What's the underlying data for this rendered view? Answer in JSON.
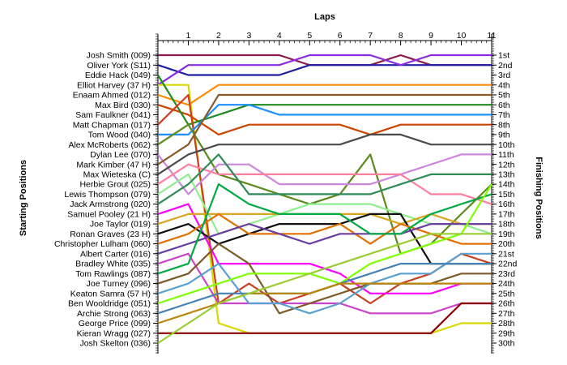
{
  "chart_data": {
    "type": "line",
    "title": "",
    "top_axis_label": "Laps",
    "left_axis_label": "Starting Positions",
    "right_axis_label": "Finishing Positions",
    "x": [
      0,
      1,
      2,
      3,
      4,
      5,
      6,
      7,
      8,
      9,
      10,
      11
    ],
    "x_tick_labels": [
      "1",
      "2",
      "3",
      "4",
      "5",
      "6",
      "7",
      "8",
      "9",
      "10",
      "11"
    ],
    "starting_labels": [
      "Josh Smith (009)",
      "Oliver York (S11)",
      "Eddie Hack (049)",
      "Elliot Harvey (37 H)",
      "Enaam Ahmed (012)",
      "Max Bird (030)",
      "Sam Faulkner (041)",
      "Matt Chapman (017)",
      "Tom Wood (040)",
      "Alex McRoberts (062)",
      "Dylan Lee (070)",
      "Mark Kimber (47 H)",
      "Max Wieteska (C)",
      "Herbie Grout (025)",
      "Lewis Thompson (079)",
      "Jack Armstrong (020)",
      "Samuel Pooley (21 H)",
      "Joe Taylor (019)",
      "Ronan Graves (23 H)",
      "Christopher Lulham (060)",
      "Albert Carter (016)",
      "Bradley White (035)",
      "Tom Rawlings (087)",
      "Joe Turney (096)",
      "Keaton Samra (57 H)",
      "Ben Wooldridge (051)",
      "Archie Strong (063)",
      "George Price (099)",
      "Kieran Wragg (027)",
      "Josh Skelton (036)"
    ],
    "finishing_labels": [
      "1st",
      "2nd",
      "3rd",
      "4th",
      "5th",
      "6th",
      "7th",
      "8th",
      "9th",
      "10th",
      "11th",
      "12th",
      "13th",
      "14th",
      "15th",
      "16th",
      "17th",
      "18th",
      "19th",
      "20th",
      "21st",
      "22nd",
      "23rd",
      "24th",
      "25th",
      "26th",
      "27th",
      "28th",
      "29th",
      "30th"
    ],
    "y_range": [
      1,
      30
    ],
    "y_inverted": true,
    "series": [
      {
        "color": "#8b1a4a",
        "values": [
          1,
          1,
          1,
          1,
          1,
          2,
          2,
          2,
          1,
          2,
          2,
          2
        ]
      },
      {
        "color": "#1e1ea0",
        "values": [
          2,
          3,
          3,
          3,
          3,
          2,
          2,
          2,
          2,
          2,
          2,
          2
        ]
      },
      {
        "color": "#8a2be2",
        "values": [
          4,
          2,
          2,
          2,
          2,
          1,
          1,
          1,
          2,
          1,
          1,
          1
        ]
      },
      {
        "color": "#d8d800",
        "values": [
          4,
          4,
          28,
          29,
          29,
          29,
          29,
          29,
          29,
          29,
          28,
          28
        ]
      },
      {
        "color": "#ff8c00",
        "values": [
          5,
          6,
          4,
          4,
          4,
          4,
          4,
          4,
          4,
          4,
          4,
          4
        ]
      },
      {
        "color": "#cc4400",
        "values": [
          6,
          7,
          9,
          8,
          8,
          8,
          8,
          9,
          8,
          8,
          8,
          8
        ]
      },
      {
        "color": "#228b22",
        "values": [
          3,
          8,
          7,
          6,
          6,
          6,
          6,
          6,
          6,
          6,
          6,
          6
        ]
      },
      {
        "color": "#c84020",
        "values": [
          8,
          5,
          26,
          24,
          26,
          25,
          24,
          26,
          24,
          23,
          21,
          22
        ]
      },
      {
        "color": "#1e90ff",
        "values": [
          9,
          9,
          6,
          6,
          7,
          7,
          7,
          7,
          7,
          7,
          7,
          7
        ]
      },
      {
        "color": "#5c8a1e",
        "values": [
          10,
          8,
          13,
          14,
          15,
          16,
          15,
          11,
          21,
          20,
          17,
          14
        ]
      },
      {
        "color": "#cc88dd",
        "values": [
          11,
          15,
          12,
          12,
          14,
          14,
          14,
          14,
          13,
          12,
          11,
          11
        ]
      },
      {
        "color": "#8b5a2b",
        "values": [
          12,
          10,
          5,
          5,
          5,
          5,
          5,
          5,
          5,
          5,
          5,
          5
        ]
      },
      {
        "color": "#4a4a4a",
        "values": [
          13,
          11,
          10,
          10,
          10,
          10,
          10,
          9,
          9,
          10,
          10,
          10
        ]
      },
      {
        "color": "#ff7fa0",
        "values": [
          14,
          12,
          13,
          13,
          13,
          13,
          13,
          13,
          13,
          15,
          15,
          16
        ]
      },
      {
        "color": "#90ee90",
        "values": [
          15,
          13,
          19,
          18,
          17,
          16,
          16,
          16,
          17,
          18,
          18,
          19
        ]
      },
      {
        "color": "#2e8b57",
        "values": [
          16,
          14,
          11,
          15,
          15,
          15,
          15,
          15,
          14,
          13,
          13,
          13
        ]
      },
      {
        "color": "#ff00ff",
        "values": [
          17,
          16,
          22,
          22,
          22,
          22,
          23,
          25,
          25,
          25,
          24,
          24
        ]
      },
      {
        "color": "#daa520",
        "values": [
          18,
          17,
          17,
          17,
          17,
          17,
          17,
          17,
          18,
          17,
          18,
          18
        ]
      },
      {
        "color": "#111111",
        "values": [
          19,
          18,
          20,
          19,
          18,
          18,
          18,
          17,
          17,
          22,
          22,
          22
        ]
      },
      {
        "color": "#e07000",
        "values": [
          20,
          19,
          17,
          19,
          19,
          19,
          18,
          20,
          18,
          19,
          20,
          20
        ]
      },
      {
        "color": "#6b3fa0",
        "values": [
          21,
          20,
          19,
          18,
          19,
          20,
          19,
          19,
          19,
          18,
          18,
          18
        ]
      },
      {
        "color": "#cc44cc",
        "values": [
          22,
          21,
          26,
          26,
          26,
          26,
          26,
          27,
          27,
          27,
          26,
          26
        ]
      },
      {
        "color": "#00aa44",
        "values": [
          23,
          22,
          14,
          16,
          17,
          17,
          17,
          19,
          19,
          17,
          16,
          15
        ]
      },
      {
        "color": "#7d5a2a",
        "values": [
          24,
          23,
          20,
          22,
          27,
          26,
          25,
          24,
          24,
          24,
          23,
          23
        ]
      },
      {
        "color": "#5aa0d0",
        "values": [
          25,
          24,
          22,
          26,
          26,
          27,
          26,
          24,
          23,
          23,
          21,
          21
        ]
      },
      {
        "color": "#7fff00",
        "values": [
          26,
          25,
          24,
          23,
          23,
          23,
          24,
          22,
          21,
          20,
          19,
          14
        ]
      },
      {
        "color": "#4682b4",
        "values": [
          27,
          26,
          25,
          25,
          25,
          25,
          24,
          23,
          22,
          22,
          22,
          22
        ]
      },
      {
        "color": "#b8860b",
        "values": [
          28,
          27,
          26,
          25,
          25,
          25,
          24,
          24,
          24,
          24,
          24,
          24
        ]
      },
      {
        "color": "#8b0000",
        "values": [
          29,
          29,
          29,
          29,
          29,
          29,
          29,
          29,
          29,
          29,
          26,
          26
        ]
      },
      {
        "color": "#9acd32",
        "values": [
          30,
          28,
          26,
          25,
          24,
          23,
          22,
          21,
          20,
          19,
          19,
          19
        ]
      }
    ]
  }
}
